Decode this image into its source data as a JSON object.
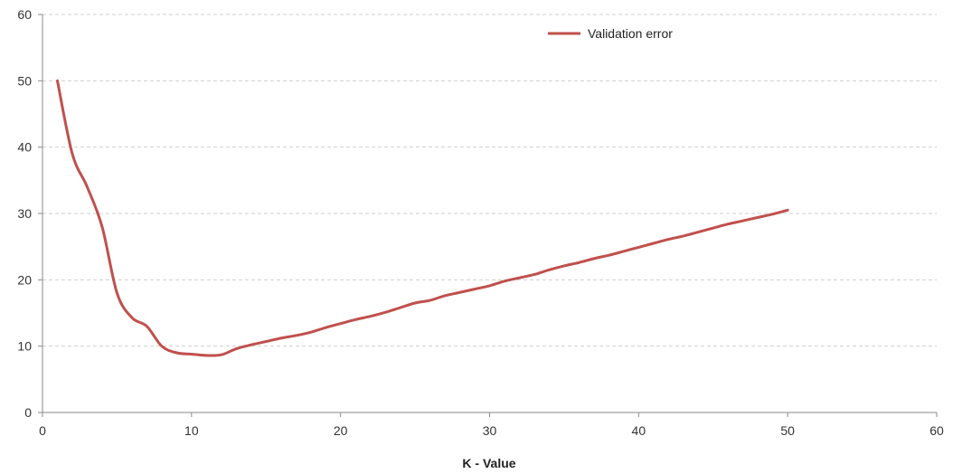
{
  "chart_data": {
    "type": "line",
    "title": "",
    "xlabel": "K - Value",
    "ylabel": "",
    "xlim": [
      0,
      60
    ],
    "ylim": [
      0,
      60
    ],
    "x_ticks": [
      0,
      10,
      20,
      30,
      40,
      50,
      60
    ],
    "y_ticks": [
      0,
      10,
      20,
      30,
      40,
      50,
      60
    ],
    "grid": "horizontal-dashed",
    "legend_position": "top-right",
    "series": [
      {
        "name": "Validation error",
        "color": "#c0504d",
        "x": [
          1,
          2,
          3,
          4,
          5,
          6,
          7,
          8,
          9,
          10,
          11,
          12,
          13,
          14,
          15,
          16,
          17,
          18,
          19,
          20,
          21,
          22,
          23,
          24,
          25,
          26,
          27,
          28,
          29,
          30,
          31,
          32,
          33,
          34,
          35,
          36,
          37,
          38,
          39,
          40,
          41,
          42,
          43,
          44,
          45,
          46,
          47,
          48,
          49,
          50
        ],
        "y": [
          50,
          39,
          34,
          28,
          18,
          14.3,
          13,
          10,
          9,
          8.8,
          8.6,
          8.7,
          9.6,
          10.2,
          10.7,
          11.2,
          11.6,
          12.1,
          12.8,
          13.4,
          14,
          14.5,
          15.1,
          15.8,
          16.5,
          16.9,
          17.6,
          18.1,
          18.6,
          19.1,
          19.8,
          20.3,
          20.8,
          21.5,
          22.1,
          22.6,
          23.2,
          23.7,
          24.3,
          24.9,
          25.5,
          26.1,
          26.6,
          27.2,
          27.8,
          28.4,
          28.9,
          29.4,
          29.9,
          30.5
        ]
      }
    ]
  }
}
